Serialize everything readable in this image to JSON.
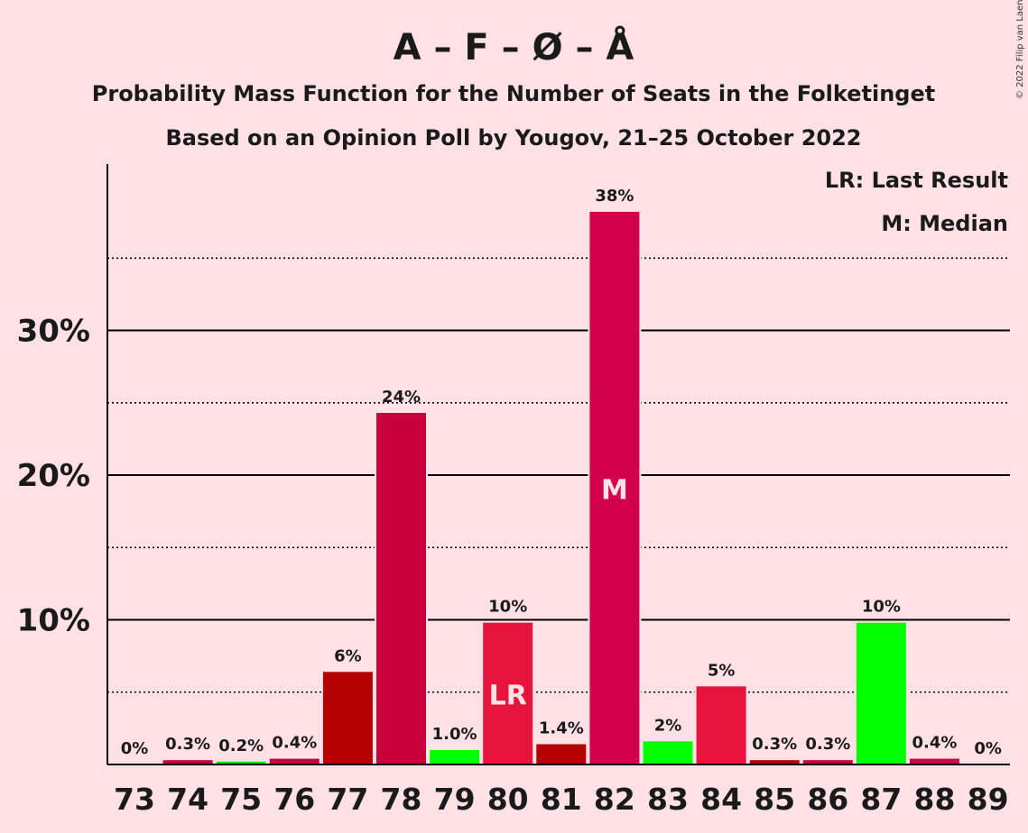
{
  "chart_data": {
    "type": "bar",
    "title": "A – F – Ø – Å",
    "subtitle_lines": [
      "Probability Mass Function for the Number of Seats in the Folketinget",
      "Based on an Opinion Poll by Yougov, 21–25 October 2022"
    ],
    "copyright": "© 2022 Filip van Laenen",
    "legend": {
      "position": "top-right",
      "entries": [
        "LR: Last Result",
        "M: Median"
      ]
    },
    "categories": [
      "73",
      "74",
      "75",
      "76",
      "77",
      "78",
      "79",
      "80",
      "81",
      "82",
      "83",
      "84",
      "85",
      "86",
      "87",
      "88",
      "89"
    ],
    "values": [
      0,
      0.3,
      0.2,
      0.4,
      6.4,
      24.3,
      1.0,
      9.8,
      1.4,
      38.2,
      1.6,
      5.4,
      0.3,
      0.3,
      9.8,
      0.4,
      0
    ],
    "value_labels": [
      "0%",
      "0.3%",
      "0.2%",
      "0.4%",
      "6%",
      "24%",
      "1.0%",
      "10%",
      "1.4%",
      "38%",
      "2%",
      "5%",
      "0.3%",
      "0.3%",
      "10%",
      "0.4%",
      "0%"
    ],
    "bar_colors": [
      "#C8003C",
      "#C8003C",
      "#00E600",
      "#C8003C",
      "#B40000",
      "#C8003C",
      "#00FF00",
      "#E6143C",
      "#B40000",
      "#D2004A",
      "#00FF00",
      "#E6143C",
      "#B40000",
      "#C8003C",
      "#00FF00",
      "#D2004A",
      "#C8003C"
    ],
    "markers": [
      {
        "category": "80",
        "text": "LR"
      },
      {
        "category": "82",
        "text": "M"
      }
    ],
    "ylim": [
      0,
      41.5
    ],
    "yticks_major": [
      10,
      20,
      30
    ],
    "ytick_labels": [
      "10%",
      "20%",
      "30%"
    ],
    "yticks_minor": [
      5,
      15,
      25,
      35
    ],
    "grid": true,
    "xlabel": "",
    "ylabel": ""
  }
}
